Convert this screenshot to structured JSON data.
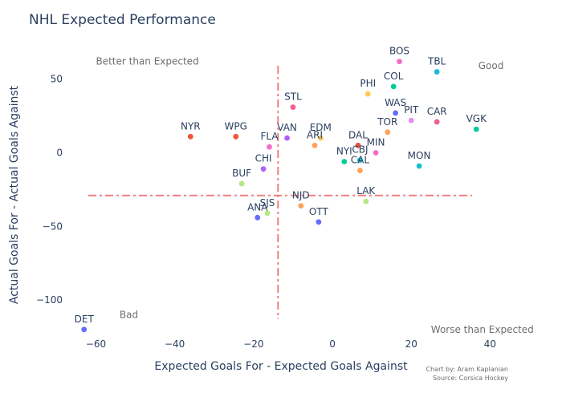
{
  "chart_data": {
    "type": "scatter",
    "title": "NHL Expected Performance",
    "xlabel": "Expected Goals For - Expected Goals Against",
    "ylabel": "Actual Goals For - Actual Goals Against",
    "xlim": [
      -66,
      45
    ],
    "ylim": [
      -125,
      70
    ],
    "xticks": [
      -60,
      -40,
      -20,
      0,
      20,
      40
    ],
    "yticks": [
      50,
      0,
      -50,
      -100
    ],
    "xtick_labels": [
      "−60",
      "−40",
      "−20",
      "0",
      "20",
      "40"
    ],
    "ytick_labels": [
      "50",
      "0",
      "−50",
      "−100"
    ],
    "reference_lines": {
      "x": -13.8,
      "y": -29,
      "color": "#f08080"
    },
    "points": [
      {
        "label": "BOS",
        "x": 17,
        "y": 62,
        "color": "#f46ec8"
      },
      {
        "label": "TBL",
        "x": 26.5,
        "y": 55,
        "color": "#17becf"
      },
      {
        "label": "COL",
        "x": 15.5,
        "y": 45,
        "color": "#00cc96"
      },
      {
        "label": "PHI",
        "x": 9,
        "y": 40,
        "color": "#fecb52"
      },
      {
        "label": "STL",
        "x": -10,
        "y": 31,
        "color": "#ef5f93"
      },
      {
        "label": "WAS",
        "x": 16,
        "y": 27,
        "color": "#636efa"
      },
      {
        "label": "PIT",
        "x": 20,
        "y": 22,
        "color": "#e48ef0"
      },
      {
        "label": "CAR",
        "x": 26.5,
        "y": 21,
        "color": "#ef5f93"
      },
      {
        "label": "VGK",
        "x": 36.5,
        "y": 16,
        "color": "#00cc96"
      },
      {
        "label": "TOR",
        "x": 14,
        "y": 14,
        "color": "#ffa15a"
      },
      {
        "label": "NYR",
        "x": -36,
        "y": 11,
        "color": "#ef553b"
      },
      {
        "label": "WPG",
        "x": -24.5,
        "y": 11,
        "color": "#ef553b"
      },
      {
        "label": "VAN",
        "x": -11.5,
        "y": 10,
        "color": "#ab63fa"
      },
      {
        "label": "EDM",
        "x": -3,
        "y": 10,
        "color": "#fecb52"
      },
      {
        "label": "FLA",
        "x": -16,
        "y": 4,
        "color": "#f46ec8"
      },
      {
        "label": "ARI",
        "x": -4.5,
        "y": 5,
        "color": "#ffa15a"
      },
      {
        "label": "DAL",
        "x": 6.5,
        "y": 5,
        "color": "#ef553b"
      },
      {
        "label": "MIN",
        "x": 11,
        "y": 0,
        "color": "#f46ec8"
      },
      {
        "label": "NYI",
        "x": 3,
        "y": -6,
        "color": "#00cc96"
      },
      {
        "label": "CBJ",
        "x": 7,
        "y": -5,
        "color": "#17becf"
      },
      {
        "label": "CAL",
        "x": 7,
        "y": -12,
        "color": "#ffa15a"
      },
      {
        "label": "MON",
        "x": 22,
        "y": -9,
        "color": "#17becf"
      },
      {
        "label": "CHI",
        "x": -17.5,
        "y": -11,
        "color": "#ab63fa"
      },
      {
        "label": "BUF",
        "x": -23,
        "y": -21,
        "color": "#b6e880"
      },
      {
        "label": "LAK",
        "x": 8.5,
        "y": -33,
        "color": "#b6e880"
      },
      {
        "label": "NJD",
        "x": -8,
        "y": -36,
        "color": "#ffa15a"
      },
      {
        "label": "SJS",
        "x": -16.5,
        "y": -41,
        "color": "#b6e880"
      },
      {
        "label": "ANA",
        "x": -19,
        "y": -44,
        "color": "#636efa"
      },
      {
        "label": "OTT",
        "x": -3.5,
        "y": -47,
        "color": "#636efa"
      },
      {
        "label": "DET",
        "x": -63,
        "y": -120,
        "color": "#636efa"
      }
    ],
    "annotations": [
      {
        "text": "Better than Expected",
        "x": -60,
        "y": 62
      },
      {
        "text": "Good",
        "x": 37,
        "y": 59
      },
      {
        "text": "Bad",
        "x": -54,
        "y": -110
      },
      {
        "text": "Worse than Expected",
        "x": 25,
        "y": -120
      }
    ]
  },
  "credit": {
    "line1": "Chart by: Aram Kaplanian",
    "line2": "Source: Corsica Hockey"
  }
}
